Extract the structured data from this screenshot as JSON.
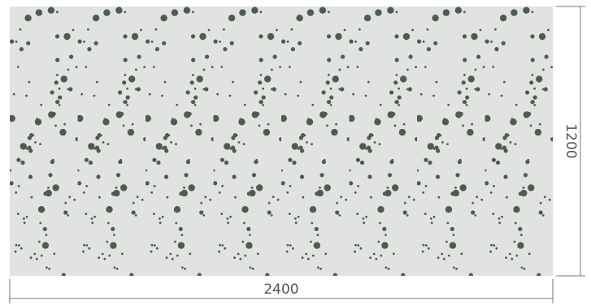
{
  "dimensions": {
    "width": "2400",
    "height": "1200"
  }
}
